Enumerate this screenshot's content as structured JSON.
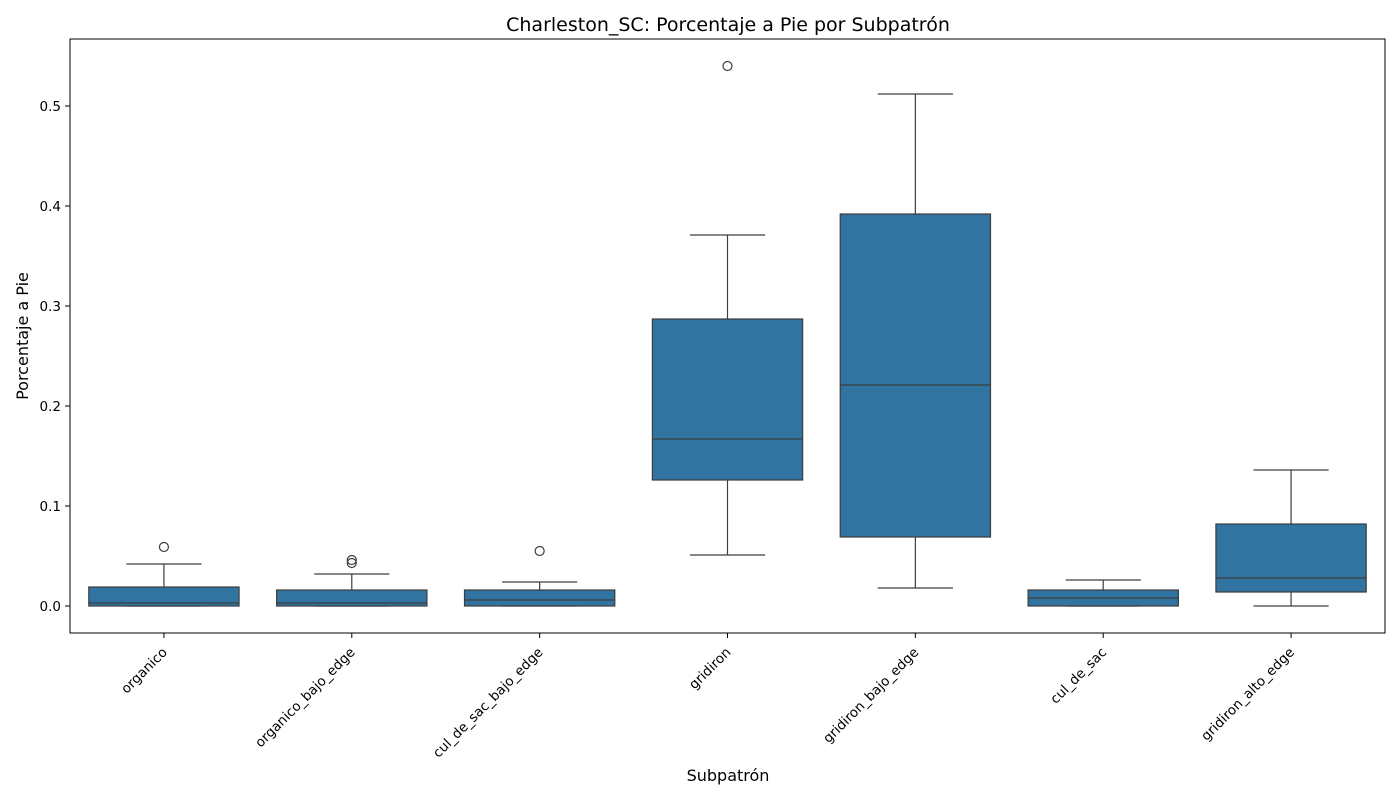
{
  "chart_data": {
    "type": "box",
    "title": "Charleston_SC: Porcentaje a Pie por Subpatrón",
    "xlabel": "Subpatrón",
    "ylabel": "Porcentaje a Pie",
    "ylim": [
      -0.027,
      0.567
    ],
    "yticks": [
      0.0,
      0.1,
      0.2,
      0.3,
      0.4,
      0.5
    ],
    "ytick_labels": [
      "0.0",
      "0.1",
      "0.2",
      "0.3",
      "0.4",
      "0.5"
    ],
    "grid": false,
    "box_color": "#3274a1",
    "edge_color": "#3d3d3d",
    "categories": [
      "organico",
      "organico_bajo_edge",
      "cul_de_sac_bajo_edge",
      "gridiron",
      "gridiron_bajo_edge",
      "cul_de_sac",
      "gridiron_alto_edge"
    ],
    "boxes": [
      {
        "category": "organico",
        "whisker_low": 0.0,
        "q1": 0.0,
        "median": 0.003,
        "q3": 0.019,
        "whisker_high": 0.042,
        "outliers": [
          0.059
        ]
      },
      {
        "category": "organico_bajo_edge",
        "whisker_low": 0.0,
        "q1": 0.0,
        "median": 0.003,
        "q3": 0.016,
        "whisker_high": 0.032,
        "outliers": [
          0.043,
          0.046
        ]
      },
      {
        "category": "cul_de_sac_bajo_edge",
        "whisker_low": 0.0,
        "q1": 0.0,
        "median": 0.006,
        "q3": 0.016,
        "whisker_high": 0.024,
        "outliers": [
          0.055
        ]
      },
      {
        "category": "gridiron",
        "whisker_low": 0.051,
        "q1": 0.126,
        "median": 0.167,
        "q3": 0.287,
        "whisker_high": 0.371,
        "outliers": [
          0.54
        ]
      },
      {
        "category": "gridiron_bajo_edge",
        "whisker_low": 0.018,
        "q1": 0.069,
        "median": 0.221,
        "q3": 0.392,
        "whisker_high": 0.512,
        "outliers": []
      },
      {
        "category": "cul_de_sac",
        "whisker_low": 0.0,
        "q1": 0.0,
        "median": 0.008,
        "q3": 0.016,
        "whisker_high": 0.026,
        "outliers": []
      },
      {
        "category": "gridiron_alto_edge",
        "whisker_low": 0.0,
        "q1": 0.014,
        "median": 0.028,
        "q3": 0.082,
        "whisker_high": 0.136,
        "outliers": []
      }
    ]
  }
}
